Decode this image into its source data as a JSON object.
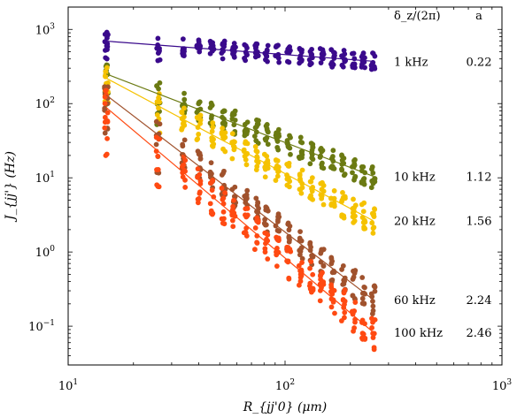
{
  "chart_data": {
    "type": "scatter",
    "xlabel": "R_{jj'0} (μm)",
    "ylabel": "J_{jj'} (Hz)",
    "xscale": "log",
    "yscale": "log",
    "xlim": [
      10,
      1000
    ],
    "ylim": [
      0.03,
      2000
    ],
    "x_ticks": [
      {
        "value": 10,
        "label": "10^1"
      },
      {
        "value": 100,
        "label": "10^2"
      },
      {
        "value": 1000,
        "label": "10^3"
      }
    ],
    "y_ticks": [
      {
        "value": 0.1,
        "label": "10^-1"
      },
      {
        "value": 1,
        "label": "10^0"
      },
      {
        "value": 10,
        "label": "10^1"
      },
      {
        "value": 100,
        "label": "10^2"
      },
      {
        "value": 1000,
        "label": "10^3"
      }
    ],
    "grid": false,
    "legend_headers": {
      "detuning": "δ_z/(2π)",
      "exponent": "a"
    },
    "x_distances": [
      15,
      26,
      34,
      40,
      46,
      52,
      58,
      66,
      74,
      82,
      92,
      104,
      118,
      132,
      148,
      166,
      186,
      208,
      230,
      255
    ],
    "series": [
      {
        "name": "1 kHz",
        "a_label": "0.22",
        "a": 0.22,
        "prefactor": 1260,
        "spread": 0.12,
        "color": "#3a0a8c"
      },
      {
        "name": "10 kHz",
        "a_label": "1.12",
        "a": 1.12,
        "prefactor": 5200,
        "spread": 0.16,
        "color": "#6b7a12"
      },
      {
        "name": "20 kHz",
        "a_label": "1.56",
        "a": 1.56,
        "prefactor": 15000,
        "spread": 0.18,
        "color": "#f5c200"
      },
      {
        "name": "60 kHz",
        "a_label": "2.24",
        "a": 2.24,
        "prefactor": 56000,
        "spread": 0.2,
        "color": "#a0522d"
      },
      {
        "name": "100 kHz",
        "a_label": "2.46",
        "a": 2.46,
        "prefactor": 69000,
        "spread": 0.25,
        "color": "#ff4a12"
      }
    ]
  }
}
